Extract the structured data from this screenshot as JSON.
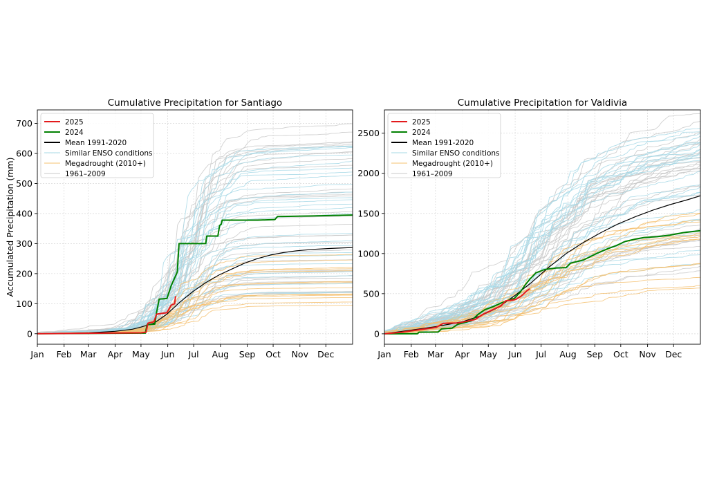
{
  "chart_data": [
    {
      "type": "line",
      "title": "Cumulative Precipitation for Santiago",
      "xlabel": "",
      "ylabel": "Accumulated Precipitation (mm)",
      "ylim": [
        -35,
        745
      ],
      "yticks": [
        0,
        100,
        200,
        300,
        400,
        500,
        600,
        700
      ],
      "xlim": [
        0,
        365
      ],
      "months": [
        "Jan",
        "Feb",
        "Mar",
        "Apr",
        "May",
        "Jun",
        "Jul",
        "Aug",
        "Sep",
        "Oct",
        "Nov",
        "Dec"
      ],
      "month_days": [
        0,
        31,
        59,
        90,
        120,
        151,
        181,
        212,
        243,
        273,
        304,
        334
      ],
      "grid": true,
      "legend_position": "top-left",
      "legend": [
        {
          "label": "2025",
          "color": "#e31a1c",
          "style": "solid"
        },
        {
          "label": "2024",
          "color": "#008000",
          "style": "solid"
        },
        {
          "label": "Mean 1991-2020",
          "color": "#000000",
          "style": "solid"
        },
        {
          "label": "Similar ENSO conditions",
          "color": "#a6d8e6",
          "style": "solid"
        },
        {
          "label": "Megadrought (2010+)",
          "color": "#f5c06e",
          "style": "solid"
        },
        {
          "label": "1961–2009",
          "color": "#c8c8c8",
          "style": "solid"
        }
      ],
      "series": [
        {
          "name": "2025",
          "color": "#e31a1c",
          "width": 2,
          "points": [
            [
              0,
              0
            ],
            [
              120,
              3
            ],
            [
              126,
              5
            ],
            [
              128,
              35
            ],
            [
              135,
              40
            ],
            [
              138,
              65
            ],
            [
              145,
              68
            ],
            [
              150,
              70
            ],
            [
              155,
              95
            ],
            [
              159,
              100
            ],
            [
              160,
              125
            ]
          ]
        },
        {
          "name": "2024",
          "color": "#008000",
          "width": 2,
          "points": [
            [
              0,
              0
            ],
            [
              125,
              2
            ],
            [
              127,
              30
            ],
            [
              136,
              32
            ],
            [
              138,
              70
            ],
            [
              141,
              115
            ],
            [
              150,
              117
            ],
            [
              155,
              160
            ],
            [
              162,
              205
            ],
            [
              164,
              300
            ],
            [
              195,
              300
            ],
            [
              196,
              325
            ],
            [
              209,
              325
            ],
            [
              211,
              360
            ],
            [
              213,
              365
            ],
            [
              214,
              378
            ],
            [
              255,
              378
            ],
            [
              275,
              380
            ],
            [
              278,
              390
            ],
            [
              320,
              392
            ],
            [
              365,
              395
            ]
          ]
        },
        {
          "name": "Mean 1991-2020",
          "color": "#000000",
          "width": 1.2,
          "points": [
            [
              0,
              0
            ],
            [
              30,
              1
            ],
            [
              60,
              3
            ],
            [
              90,
              8
            ],
            [
              110,
              15
            ],
            [
              120,
              22
            ],
            [
              135,
              35
            ],
            [
              150,
              65
            ],
            [
              165,
              105
            ],
            [
              180,
              140
            ],
            [
              195,
              170
            ],
            [
              210,
              195
            ],
            [
              225,
              215
            ],
            [
              240,
              235
            ],
            [
              255,
              250
            ],
            [
              270,
              262
            ],
            [
              285,
              270
            ],
            [
              300,
              276
            ],
            [
              320,
              281
            ],
            [
              340,
              284
            ],
            [
              365,
              287
            ]
          ]
        }
      ]
    },
    {
      "type": "line",
      "title": "Cumulative Precipitation for Valdivia",
      "xlabel": "",
      "ylabel": "",
      "ylim": [
        -130,
        2790
      ],
      "yticks": [
        0,
        500,
        1000,
        1500,
        2000,
        2500
      ],
      "xlim": [
        0,
        365
      ],
      "months": [
        "Jan",
        "Feb",
        "Mar",
        "Apr",
        "May",
        "Jun",
        "Jul",
        "Aug",
        "Sep",
        "Oct",
        "Nov",
        "Dec"
      ],
      "month_days": [
        0,
        31,
        59,
        90,
        120,
        151,
        181,
        212,
        243,
        273,
        304,
        334
      ],
      "grid": true,
      "legend_position": "top-left",
      "legend": [
        {
          "label": "2025",
          "color": "#e31a1c",
          "style": "solid"
        },
        {
          "label": "2024",
          "color": "#008000",
          "style": "solid"
        },
        {
          "label": "Mean 1991-2020",
          "color": "#000000",
          "style": "solid"
        },
        {
          "label": "Similar ENSO conditions",
          "color": "#a6d8e6",
          "style": "solid"
        },
        {
          "label": "Megadrought (2010+)",
          "color": "#f5c06e",
          "style": "solid"
        },
        {
          "label": "1961–2009",
          "color": "#c8c8c8",
          "style": "solid"
        }
      ],
      "series": [
        {
          "name": "2025",
          "color": "#e31a1c",
          "width": 2,
          "points": [
            [
              0,
              0
            ],
            [
              20,
              20
            ],
            [
              40,
              50
            ],
            [
              60,
              80
            ],
            [
              68,
              130
            ],
            [
              85,
              135
            ],
            [
              95,
              155
            ],
            [
              105,
              180
            ],
            [
              115,
              250
            ],
            [
              125,
              300
            ],
            [
              135,
              350
            ],
            [
              140,
              410
            ],
            [
              148,
              420
            ],
            [
              152,
              430
            ],
            [
              158,
              470
            ],
            [
              165,
              540
            ],
            [
              168,
              560
            ]
          ]
        },
        {
          "name": "2024",
          "color": "#008000",
          "width": 2,
          "points": [
            [
              0,
              0
            ],
            [
              38,
              0
            ],
            [
              40,
              20
            ],
            [
              62,
              22
            ],
            [
              66,
              60
            ],
            [
              78,
              70
            ],
            [
              85,
              120
            ],
            [
              100,
              160
            ],
            [
              108,
              240
            ],
            [
              116,
              300
            ],
            [
              126,
              340
            ],
            [
              134,
              380
            ],
            [
              144,
              420
            ],
            [
              150,
              440
            ],
            [
              157,
              520
            ],
            [
              162,
              600
            ],
            [
              168,
              680
            ],
            [
              175,
              760
            ],
            [
              185,
              800
            ],
            [
              198,
              820
            ],
            [
              210,
              825
            ],
            [
              215,
              880
            ],
            [
              230,
              920
            ],
            [
              245,
              1000
            ],
            [
              258,
              1060
            ],
            [
              268,
              1100
            ],
            [
              278,
              1150
            ],
            [
              290,
              1180
            ],
            [
              300,
              1200
            ],
            [
              315,
              1210
            ],
            [
              330,
              1230
            ],
            [
              345,
              1260
            ],
            [
              365,
              1285
            ]
          ]
        },
        {
          "name": "Mean 1991-2020",
          "color": "#000000",
          "width": 1.2,
          "points": [
            [
              0,
              0
            ],
            [
              30,
              45
            ],
            [
              60,
              90
            ],
            [
              90,
              150
            ],
            [
              110,
              220
            ],
            [
              130,
              320
            ],
            [
              150,
              470
            ],
            [
              170,
              640
            ],
            [
              190,
              830
            ],
            [
              210,
              1000
            ],
            [
              230,
              1140
            ],
            [
              250,
              1260
            ],
            [
              270,
              1370
            ],
            [
              290,
              1460
            ],
            [
              310,
              1540
            ],
            [
              330,
              1610
            ],
            [
              350,
              1670
            ],
            [
              365,
              1720
            ]
          ]
        }
      ]
    }
  ]
}
